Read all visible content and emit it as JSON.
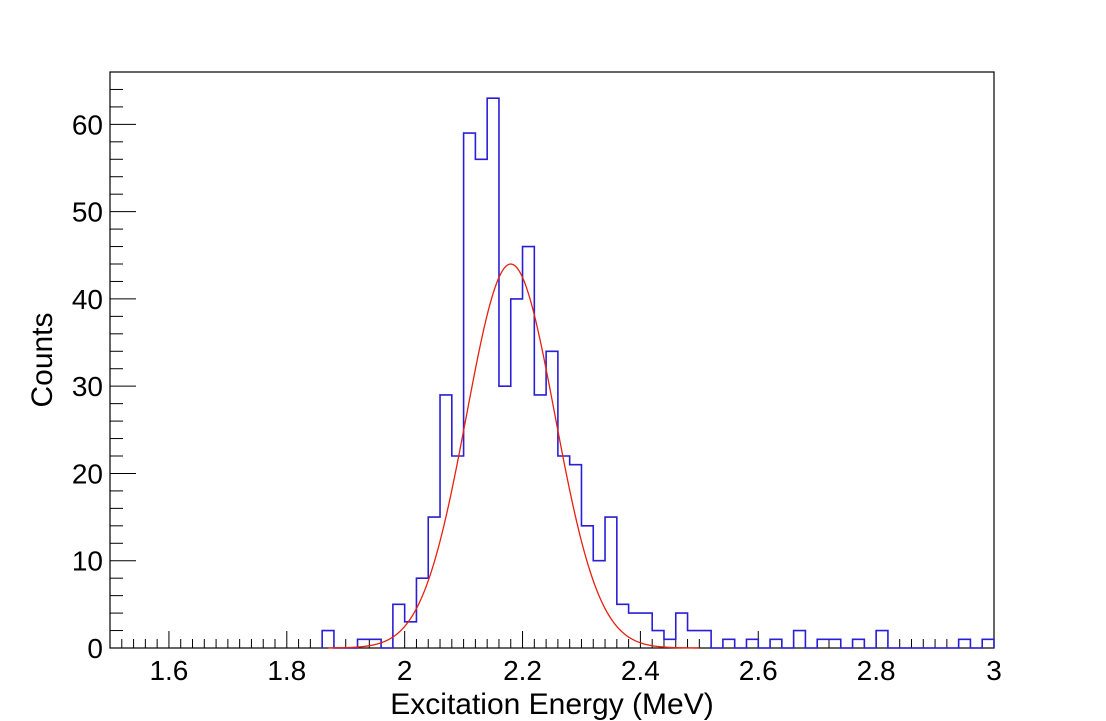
{
  "chart_data": {
    "type": "histogram",
    "xlabel": "Excitation Energy (MeV)",
    "ylabel": "Counts",
    "xlim": [
      1.5,
      3.0
    ],
    "ylim": [
      0,
      66
    ],
    "x_ticks": [
      "1.6",
      "1.8",
      "2",
      "2.2",
      "2.4",
      "2.6",
      "2.8",
      "3"
    ],
    "y_ticks": [
      "0",
      "10",
      "20",
      "30",
      "40",
      "50",
      "60"
    ],
    "grid": false,
    "bin_width": 0.02,
    "bin_starts": [
      1.86,
      1.88,
      1.9,
      1.92,
      1.94,
      1.96,
      1.98,
      2.0,
      2.02,
      2.04,
      2.06,
      2.08,
      2.1,
      2.12,
      2.14,
      2.16,
      2.18,
      2.2,
      2.22,
      2.24,
      2.26,
      2.28,
      2.3,
      2.32,
      2.34,
      2.36,
      2.38,
      2.4,
      2.42,
      2.44,
      2.46,
      2.48,
      2.5,
      2.52,
      2.54,
      2.56,
      2.58,
      2.6,
      2.62,
      2.64,
      2.66,
      2.68,
      2.7,
      2.72,
      2.74,
      2.76,
      2.78,
      2.8,
      2.82,
      2.84,
      2.86,
      2.88,
      2.9,
      2.92,
      2.94,
      2.96,
      2.98
    ],
    "counts": [
      2,
      0,
      0,
      1,
      1,
      0,
      5,
      3,
      8,
      15,
      29,
      22,
      59,
      56,
      63,
      30,
      40,
      46,
      29,
      34,
      22,
      21,
      14,
      10,
      15,
      5,
      4,
      4,
      2,
      1,
      4,
      2,
      2,
      0,
      1,
      0,
      1,
      0,
      1,
      0,
      2,
      0,
      1,
      1,
      0,
      1,
      0,
      2,
      0,
      0,
      0,
      0,
      0,
      0,
      1,
      0,
      1
    ],
    "fit": {
      "function": "gaussian",
      "amplitude": 44,
      "mean": 2.18,
      "sigma": 0.075,
      "x_range": [
        1.87,
        2.5
      ]
    },
    "colors": {
      "histogram": "#2a1fd6",
      "fit": "#e8200f",
      "axis": "#000000"
    }
  }
}
